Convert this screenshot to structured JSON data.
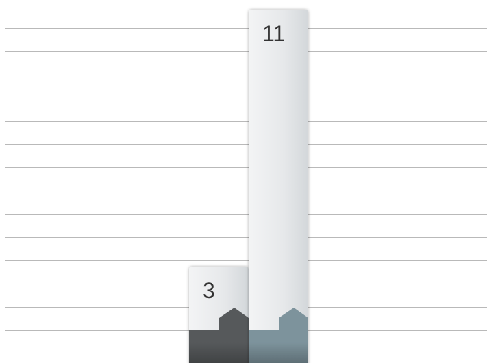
{
  "chart_data": {
    "type": "bar",
    "categories": [
      null,
      null
    ],
    "values": [
      3,
      11
    ],
    "colors": [
      "#56595b",
      "#7d939c"
    ],
    "ylim": [
      0,
      11.15
    ]
  }
}
